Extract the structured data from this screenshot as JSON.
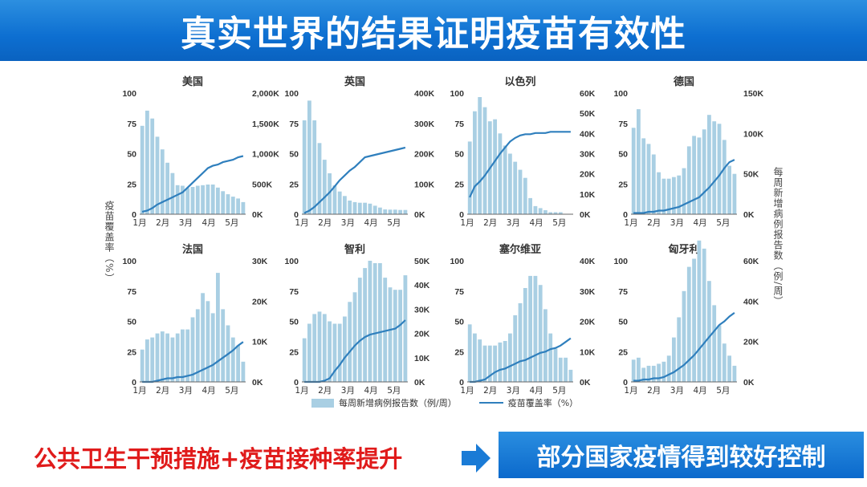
{
  "header": {
    "title": "真实世界的结果证明疫苗有效性"
  },
  "axis_labels": {
    "left": "疫苗覆盖率（%）",
    "right": "每周新增病例报告数（例/周）"
  },
  "legend": {
    "bars": "每周新增病例报告数（例/周）",
    "line": "疫苗覆盖率（%）"
  },
  "footer": {
    "left_text": "公共卫生干预措施+疫苗接种率提升",
    "right_text": "部分国家疫情得到较好控制"
  },
  "colors": {
    "banner": "#0d6fd1",
    "bar": "#a9cfe3",
    "line": "#2f7fbd",
    "left_text": "#e01b1b",
    "arrow": "#1a7bd6"
  },
  "icons": {
    "arrow": "right-arrow-icon"
  },
  "chart_data": [
    {
      "type": "bar",
      "title": "美国",
      "left_ticks": [
        "100",
        "75",
        "50",
        "25",
        "0"
      ],
      "right_ticks": [
        "2,000K",
        "1,500K",
        "1,000K",
        "500K",
        "0K"
      ],
      "x_ticks": [
        "1月",
        "2月",
        "3月",
        "4月",
        "5月"
      ],
      "ylim": [
        0,
        100
      ],
      "right_max": 2000,
      "bars": [
        1460,
        1710,
        1580,
        1280,
        1070,
        850,
        680,
        480,
        470,
        430,
        450,
        470,
        480,
        490,
        490,
        440,
        380,
        330,
        290,
        260,
        200
      ],
      "line": [
        2,
        3,
        5,
        8,
        10,
        12,
        14,
        16,
        18,
        22,
        26,
        30,
        34,
        38,
        40,
        41,
        43,
        44,
        45,
        47,
        48
      ]
    },
    {
      "type": "bar",
      "title": "英国",
      "left_ticks": [
        "100",
        "75",
        "50",
        "25",
        "0"
      ],
      "right_ticks": [
        "400K",
        "300K",
        "200K",
        "100K",
        "0K"
      ],
      "x_ticks": [
        "1月",
        "2月",
        "3月",
        "4月",
        "5月"
      ],
      "ylim": [
        0,
        100
      ],
      "right_max": 400,
      "bars": [
        310,
        375,
        310,
        235,
        180,
        135,
        95,
        75,
        60,
        45,
        40,
        38,
        38,
        35,
        28,
        22,
        16,
        15,
        15,
        14,
        14
      ],
      "line": [
        1,
        3,
        6,
        10,
        14,
        18,
        23,
        28,
        32,
        36,
        39,
        43,
        47,
        48,
        49,
        50,
        51,
        52,
        53,
        54,
        55
      ]
    },
    {
      "type": "bar",
      "title": "以色列",
      "left_ticks": [
        "100",
        "75",
        "50",
        "25",
        "0"
      ],
      "right_ticks": [
        "60K",
        "50K",
        "40K",
        "30K",
        "20K",
        "10K",
        "0K"
      ],
      "x_ticks": [
        "1月",
        "2月",
        "3月",
        "4月",
        "5月"
      ],
      "ylim": [
        0,
        100
      ],
      "right_max": 60,
      "bars": [
        36,
        51,
        58,
        53,
        46,
        47,
        40,
        34,
        30,
        26,
        22,
        18,
        8,
        4,
        3,
        2,
        1,
        1,
        1,
        0,
        0
      ],
      "line": [
        14,
        23,
        27,
        32,
        38,
        44,
        50,
        55,
        60,
        63,
        65,
        66,
        66,
        67,
        67,
        67,
        68,
        68,
        68,
        68,
        68
      ]
    },
    {
      "type": "bar",
      "title": "德国",
      "left_ticks": [
        "100",
        "75",
        "50",
        "25",
        "0"
      ],
      "right_ticks": [
        "150K",
        "100K",
        "50K",
        "0K"
      ],
      "x_ticks": [
        "1月",
        "2月",
        "3月",
        "4月",
        "5月"
      ],
      "ylim": [
        0,
        100
      ],
      "right_max": 150,
      "bars": [
        107,
        130,
        94,
        87,
        74,
        52,
        44,
        44,
        46,
        48,
        57,
        84,
        97,
        95,
        105,
        123,
        115,
        112,
        92,
        60,
        50
      ],
      "line": [
        1,
        1,
        1,
        2,
        2,
        3,
        3,
        4,
        5,
        6,
        8,
        10,
        12,
        14,
        18,
        22,
        27,
        32,
        38,
        43,
        45
      ]
    },
    {
      "type": "bar",
      "title": "法国",
      "left_ticks": [
        "100",
        "75",
        "50",
        "25",
        "0"
      ],
      "right_ticks": [
        "30K",
        "20K",
        "10K",
        "0K"
      ],
      "x_ticks": [
        "1月",
        "2月",
        "3月",
        "4月",
        "5月"
      ],
      "ylim": [
        0,
        100
      ],
      "right_max": 30,
      "bars": [
        8,
        10.5,
        11,
        12,
        12.5,
        12,
        11,
        12,
        13,
        13,
        16,
        18,
        22,
        20,
        17,
        27,
        18,
        14,
        11,
        9,
        5
      ],
      "line": [
        0,
        0,
        0,
        1,
        2,
        3,
        3,
        4,
        4,
        5,
        6,
        8,
        10,
        12,
        14,
        17,
        20,
        23,
        26,
        30,
        33
      ]
    },
    {
      "type": "bar",
      "title": "智利",
      "left_ticks": [
        "100",
        "75",
        "50",
        "25",
        "0"
      ],
      "right_ticks": [
        "50K",
        "40K",
        "30K",
        "20K",
        "10K",
        "0K"
      ],
      "x_ticks": [
        "1月",
        "2月",
        "3月",
        "4月",
        "5月"
      ],
      "ylim": [
        0,
        100
      ],
      "right_max": 50,
      "bars": [
        18,
        24,
        28,
        29,
        28,
        25,
        24,
        24,
        27,
        33,
        37,
        43,
        47,
        50,
        49,
        49,
        43,
        39,
        38,
        38,
        44
      ],
      "line": [
        0,
        0,
        0,
        0,
        1,
        3,
        9,
        14,
        20,
        25,
        30,
        34,
        37,
        39,
        40,
        41,
        42,
        43,
        44,
        47,
        51
      ]
    },
    {
      "type": "bar",
      "title": "塞尔维亚",
      "left_ticks": [
        "100",
        "75",
        "50",
        "25",
        "0"
      ],
      "right_ticks": [
        "40K",
        "30K",
        "20K",
        "10K",
        "0K"
      ],
      "x_ticks": [
        "1月",
        "2月",
        "3月",
        "4月",
        "5月"
      ],
      "ylim": [
        0,
        100
      ],
      "right_max": 40,
      "bars": [
        19,
        16,
        14,
        12,
        12,
        12,
        13,
        13.5,
        16,
        22,
        26,
        31,
        35,
        35,
        32,
        24,
        16,
        11,
        8,
        8,
        4
      ],
      "line": [
        0,
        0,
        1,
        2,
        5,
        8,
        10,
        11,
        13,
        15,
        17,
        18,
        20,
        22,
        24,
        25,
        27,
        28,
        30,
        33,
        36
      ]
    },
    {
      "type": "bar",
      "title": "匈牙利",
      "left_ticks": [
        "100",
        "75",
        "50",
        "25",
        "0"
      ],
      "right_ticks": [
        "60K",
        "40K",
        "20K",
        "0K"
      ],
      "x_ticks": [
        "1月",
        "2月",
        "3月",
        "4月",
        "5月"
      ],
      "ylim": [
        0,
        100
      ],
      "right_max": 60,
      "bars": [
        11,
        12,
        7,
        8,
        8,
        9,
        10,
        13,
        22,
        32,
        45,
        57,
        61,
        70,
        66,
        50,
        38,
        28,
        19,
        13,
        8
      ],
      "line": [
        1,
        1,
        2,
        2,
        3,
        3,
        4,
        6,
        8,
        11,
        14,
        18,
        22,
        27,
        32,
        37,
        42,
        47,
        50,
        54,
        57
      ]
    }
  ]
}
